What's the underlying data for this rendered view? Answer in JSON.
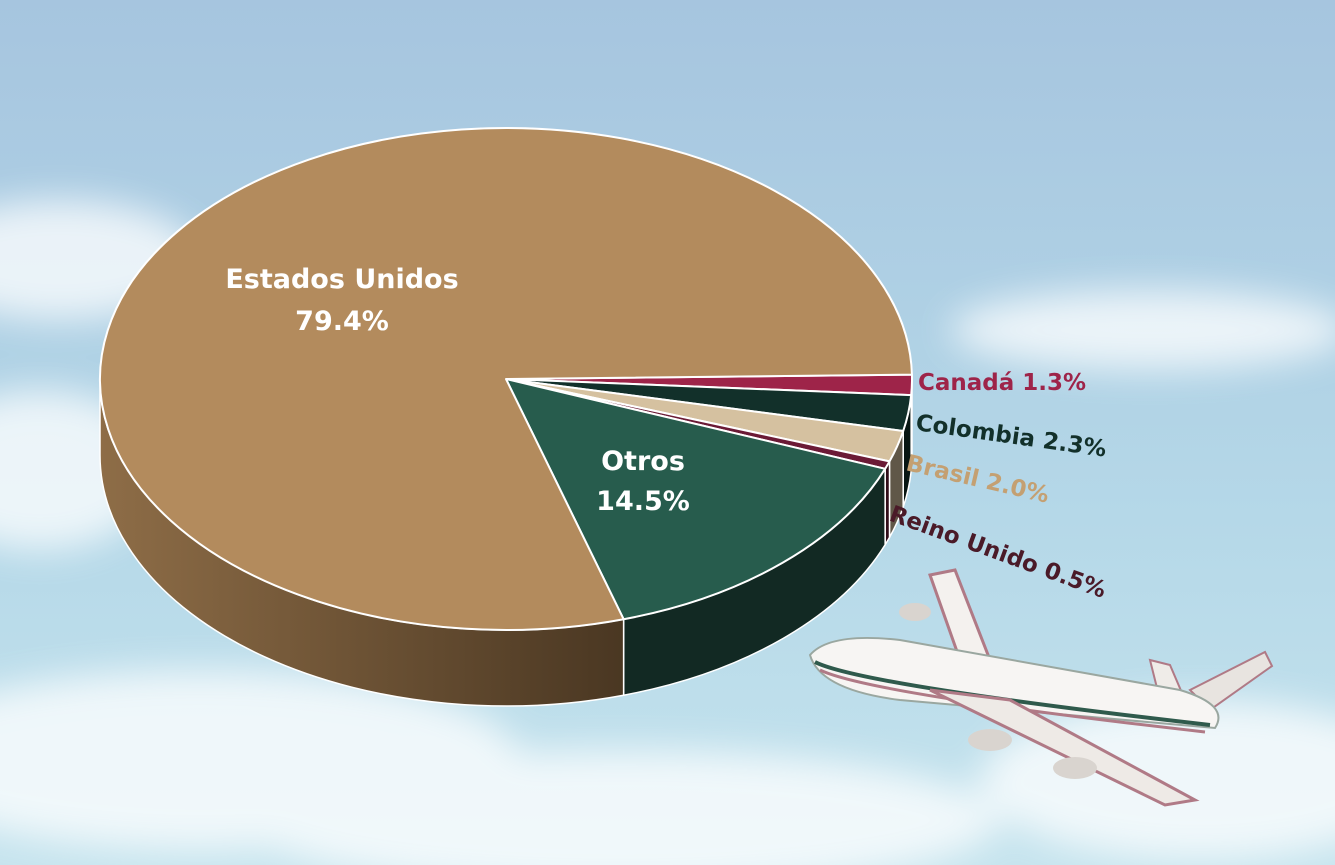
{
  "chart_data": {
    "type": "pie",
    "categories": [
      "Canadá",
      "Colombia",
      "Brasil",
      "Reino Unido",
      "Otros",
      "Estados Unidos"
    ],
    "values": [
      1.3,
      2.3,
      2.0,
      0.5,
      14.5,
      79.4
    ],
    "value_labels": [
      "1.3%",
      "2.3%",
      "2.0%",
      "0.5%",
      "14.5%",
      "79.4%"
    ],
    "colors": [
      "#9e2449",
      "#12302a",
      "#d5c1a0",
      "#6b1a36",
      "#275c4d",
      "#b38b5d"
    ]
  }
}
